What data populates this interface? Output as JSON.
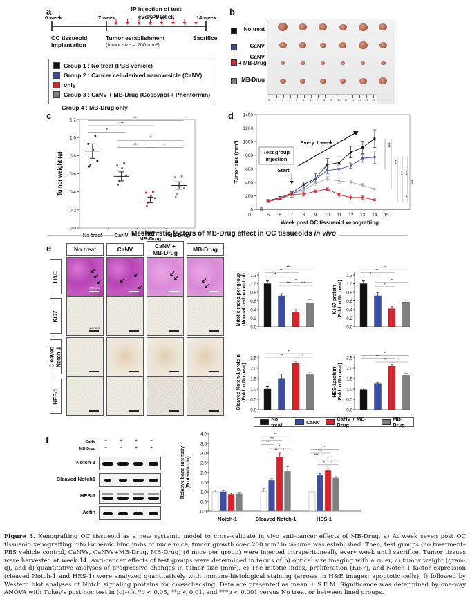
{
  "panels": {
    "a": "a",
    "b": "b",
    "c": "c",
    "d": "d",
    "e": "e",
    "f": "f"
  },
  "timeline": {
    "week0": "0 week",
    "week7": "7 week",
    "week14": "14 week",
    "ip_line1": "IP injection of test groups",
    "ip_line2": "every 1 week",
    "stage1_l1": "OC tissueoid",
    "stage1_l2": "implantation",
    "stage2_l1": "Tumor establishment",
    "stage2_l2": "(tumor size > 200 mm³)",
    "stage3": "Sacrifice",
    "injection_count": 8
  },
  "groups_legend": {
    "items": [
      {
        "label": "Group 1 : No treat (PBS vehicle)",
        "color": "#111111"
      },
      {
        "label": "Group 2 : Cancer cell-derived nanovesicle (CaNV)",
        "color": "#3b4ea6"
      },
      {
        "label": "only",
        "color": "#d9232b"
      },
      {
        "label": "Group 3 : CaNV + MB-Drug (Gossypol + Phenformin)",
        "color": "#808080"
      }
    ],
    "extra": "Group 4 : MB-Drug only"
  },
  "photo_legend": {
    "items": [
      {
        "label": "No treat",
        "color": "#111111"
      },
      {
        "label": "CaNV",
        "color": "#3b4ea6"
      },
      {
        "label_l1": "CaNV",
        "label_l2": "+ MB-Drug",
        "color": "#d9232b"
      },
      {
        "label": "MB-Drug",
        "color": "#808080"
      }
    ],
    "ruler_ticks": [
      "0",
      "1",
      "2",
      "3",
      "4",
      "5",
      "6",
      "7",
      "8",
      "9",
      "10",
      "11",
      "12",
      "13",
      "14",
      "15"
    ]
  },
  "colors": {
    "black": "#111111",
    "blue": "#3b4ea6",
    "red": "#d9232b",
    "gray": "#808080",
    "lightgray": "#aaaaaa"
  },
  "section_title": {
    "main": "Mechanistic factors of MB-Drug effect in OC tissueoids ",
    "italic": "in vivo"
  },
  "ihc": {
    "columns": [
      {
        "l1": "No treat",
        "l2": ""
      },
      {
        "l1": "CaNV",
        "l2": ""
      },
      {
        "l1": "CaNV +",
        "l2": "MB-Drug"
      },
      {
        "l1": "MB-Drug",
        "l2": ""
      }
    ],
    "rows": [
      {
        "l1": "H&E",
        "l2": ""
      },
      {
        "l1": "Ki67",
        "l2": ""
      },
      {
        "l1": "Cleaved",
        "l2": "Notch-1"
      },
      {
        "l1": "HES-1",
        "l2": ""
      }
    ],
    "scale_label_he": "100 μm",
    "scale_label_ki67": "100 μm"
  },
  "chart_data": [
    {
      "id": "c",
      "type": "scatter",
      "title": "",
      "xlabel": "",
      "ylabel": "Tumor weight (g)",
      "ylim": [
        0,
        1.2
      ],
      "yticks": [
        "0.0",
        "0.2",
        "0.4",
        "0.6",
        "0.8",
        "1.0",
        "1.2"
      ],
      "categories": [
        "No treat",
        "CaNV",
        "CaNV +|MB-Drug",
        "MB-Drug"
      ],
      "series": [
        {
          "name": "No treat",
          "color": "#111111",
          "points": [
            1.02,
            0.93,
            0.87,
            0.74,
            0.7,
            0.68
          ],
          "mean": 0.85,
          "sem": 0.08
        },
        {
          "name": "CaNV",
          "color": "#3b4ea6",
          "points": [
            0.72,
            0.69,
            0.66,
            0.58,
            0.52,
            0.48
          ],
          "mean": 0.57,
          "sem": 0.05
        },
        {
          "name": "CaNV + MB-Drug",
          "color": "#d9232b",
          "points": [
            0.4,
            0.39,
            0.35,
            0.33,
            0.28,
            0.24
          ],
          "mean": 0.31,
          "sem": 0.03
        },
        {
          "name": "MB-Drug",
          "color": "#808080",
          "points": [
            0.57,
            0.56,
            0.46,
            0.44,
            0.37,
            0.34
          ],
          "mean": 0.47,
          "sem": 0.04
        }
      ],
      "significance": [
        {
          "from": 0,
          "to": 3,
          "label": "***",
          "level": 1.19
        },
        {
          "from": 0,
          "to": 2,
          "label": "***",
          "level": 1.13
        },
        {
          "from": 0,
          "to": 1,
          "label": "*",
          "level": 1.06
        },
        {
          "from": 1,
          "to": 3,
          "label": "*",
          "level": 0.97
        },
        {
          "from": 1,
          "to": 2,
          "label": "***",
          "level": 0.89
        },
        {
          "from": 2,
          "to": 3,
          "label": "*",
          "level": 0.89
        }
      ]
    },
    {
      "id": "d",
      "type": "line",
      "xlabel": "Week post OC tissueoid xenografting",
      "ylabel": "Tumor size (mm³)",
      "ylim": [
        0,
        1400
      ],
      "yticks": [
        "0",
        "200",
        "400",
        "600",
        "800",
        "1000",
        "1200",
        "1400"
      ],
      "xticks": [
        "0",
        "5",
        "6",
        "7",
        "8",
        "9",
        "10",
        "11",
        "12",
        "13",
        "14",
        "15"
      ],
      "x": [
        5,
        6,
        7,
        8,
        9,
        10,
        11,
        12,
        13,
        14
      ],
      "series": [
        {
          "name": "No treat",
          "color": "#111111",
          "values": [
            130,
            170,
            240,
            365,
            455,
            660,
            690,
            845,
            915,
            1045
          ],
          "err": [
            15,
            20,
            30,
            35,
            70,
            90,
            85,
            85,
            90,
            130
          ]
        },
        {
          "name": "CaNV",
          "color": "#3b4ea6",
          "values": [
            125,
            165,
            230,
            310,
            445,
            575,
            595,
            645,
            755,
            770
          ],
          "err": [
            15,
            20,
            30,
            40,
            60,
            50,
            60,
            40,
            60,
            90
          ]
        },
        {
          "name": "MB-Drug",
          "color": "#aaaaaa",
          "values": [
            120,
            160,
            225,
            285,
            385,
            445,
            420,
            400,
            355,
            300
          ],
          "err": [
            15,
            20,
            30,
            30,
            30,
            40,
            40,
            25,
            25,
            30
          ]
        },
        {
          "name": "CaNV + MB-Drug",
          "color": "#d9232b",
          "values": [
            115,
            155,
            220,
            225,
            265,
            300,
            215,
            175,
            175,
            140
          ],
          "err": [
            15,
            15,
            40,
            30,
            20,
            20,
            20,
            35,
            25,
            15
          ]
        }
      ],
      "annotations": {
        "box_l1": "Test group",
        "box_l2": "injection",
        "start": "Start",
        "every": "Every 1 week"
      },
      "significance": [
        {
          "label": "***",
          "top": 1060,
          "bottom": 760
        },
        {
          "label": "***",
          "top": 1060,
          "bottom": 300
        },
        {
          "label": "***",
          "top": 1060,
          "bottom": 100
        },
        {
          "label": "***",
          "top": 780,
          "bottom": 100
        },
        {
          "label": "***",
          "top": 780,
          "bottom": 300
        },
        {
          "label": "*",
          "top": 300,
          "bottom": 100
        },
        {
          "label": "***",
          "top": 780,
          "bottom": 100
        }
      ]
    },
    {
      "id": "e1",
      "type": "bar",
      "ylabel_l1": "Mitotic index per group",
      "ylabel_l2": "(Normalized to control)",
      "ylim": [
        0,
        1.2
      ],
      "yticks": [
        "0.0",
        "0.2",
        "0.4",
        "0.6",
        "0.8",
        "1.0",
        "1.2"
      ],
      "categories": [
        "No treat",
        "CaNV",
        "CaNV + MB-Drug",
        "MB-Drug"
      ],
      "values": [
        1.0,
        0.72,
        0.34,
        0.55
      ],
      "err": [
        0.06,
        0.05,
        0.07,
        0.08
      ],
      "significance": [
        {
          "from": 0,
          "to": 3,
          "label": "***",
          "level": 1.33
        },
        {
          "from": 0,
          "to": 2,
          "label": "***",
          "level": 1.26
        },
        {
          "from": 0,
          "to": 1,
          "label": "**",
          "level": 1.17
        },
        {
          "from": 1,
          "to": 3,
          "label": "*",
          "level": 1.03
        },
        {
          "from": 1,
          "to": 2,
          "label": "***",
          "level": 0.96
        },
        {
          "from": 2,
          "to": 3,
          "label": "***",
          "level": 0.96
        }
      ]
    },
    {
      "id": "e2",
      "type": "bar",
      "ylabel_l1": "Ki 67 protein",
      "ylabel_l2": "(Fold to No treat)",
      "ylim": [
        0,
        1.2
      ],
      "yticks": [
        "0.0",
        "0.2",
        "0.4",
        "0.6",
        "0.8",
        "1.0",
        "1.2"
      ],
      "categories": [
        "No treat",
        "CaNV",
        "CaNV + MB-Drug",
        "MB-Drug"
      ],
      "values": [
        1.0,
        0.72,
        0.42,
        0.57
      ],
      "err": [
        0.06,
        0.07,
        0.05,
        0.04
      ],
      "significance": [
        {
          "from": 0,
          "to": 3,
          "label": "**",
          "level": 1.33
        },
        {
          "from": 0,
          "to": 2,
          "label": "***",
          "level": 1.26
        },
        {
          "from": 0,
          "to": 1,
          "label": "*",
          "level": 1.17
        },
        {
          "from": 1,
          "to": 3,
          "label": "*",
          "level": 1.03
        },
        {
          "from": 1,
          "to": 2,
          "label": "*",
          "level": 0.93
        }
      ]
    },
    {
      "id": "e3",
      "type": "bar",
      "ylabel_l1": "Cleaved Notch-1 protein",
      "ylabel_l2": "(Fold to No treat)",
      "ylim": [
        0,
        2.5
      ],
      "yticks": [
        "0.0",
        "0.5",
        "1.0",
        "1.5",
        "2.0",
        "2.5"
      ],
      "categories": [
        "No treat",
        "CaNV",
        "CaNV + MB-Drug",
        "MB-Drug"
      ],
      "values": [
        1.0,
        1.51,
        2.22,
        1.68
      ],
      "err": [
        0.12,
        0.2,
        0.12,
        0.12
      ],
      "significance": [
        {
          "from": 0,
          "to": 3,
          "label": "*",
          "level": 2.7
        },
        {
          "from": 0,
          "to": 2,
          "label": "**",
          "level": 2.5
        },
        {
          "from": 2,
          "to": 3,
          "label": "*",
          "level": 2.5
        }
      ]
    },
    {
      "id": "e4",
      "type": "bar",
      "ylabel_l1": "HES-1protein",
      "ylabel_l2": "(Fold to No treat)",
      "ylim": [
        0,
        2.5
      ],
      "yticks": [
        "0.0",
        "0.5",
        "1.0",
        "1.5",
        "2.0",
        "2.5"
      ],
      "categories": [
        "No treat",
        "CaNV",
        "CaNV + MB-Drug",
        "MB-Drug"
      ],
      "values": [
        0.98,
        1.24,
        2.09,
        1.65
      ],
      "err": [
        0.07,
        0.08,
        0.09,
        0.1
      ],
      "significance": [
        {
          "from": 0,
          "to": 3,
          "label": "*",
          "level": 2.62
        },
        {
          "from": 0,
          "to": 2,
          "label": "***",
          "level": 2.45
        },
        {
          "from": 1,
          "to": 2,
          "label": "**",
          "level": 2.3
        },
        {
          "from": 2,
          "to": 3,
          "label": "*",
          "level": 2.3
        }
      ]
    },
    {
      "id": "f",
      "type": "bar",
      "ylabel_l1": "Relative band intensity",
      "ylabel_l2": "(Protein/actin)",
      "ylim": [
        0,
        4.0
      ],
      "yticks": [
        "0.0",
        "0.5",
        "1.0",
        "1.5",
        "2.0",
        "2.5",
        "3.0",
        "3.5",
        "4.0"
      ],
      "categories": [
        "Notch-1",
        "Cleaved Notch-1",
        "HES-1"
      ],
      "series": [
        {
          "name": "No treat",
          "color": "#ffffff",
          "values": [
            1.0,
            1.01,
            1.0
          ],
          "err": [
            0.08,
            0.15,
            0.08
          ]
        },
        {
          "name": "CaNV",
          "color": "#3b4ea6",
          "values": [
            1.01,
            1.6,
            1.86
          ],
          "err": [
            0.06,
            0.08,
            0.09
          ]
        },
        {
          "name": "CaNV + MB-Drug",
          "color": "#d9232b",
          "values": [
            0.88,
            2.8,
            2.1
          ],
          "err": [
            0.06,
            0.2,
            0.12
          ]
        },
        {
          "name": "MB-Drug",
          "color": "#808080",
          "values": [
            0.9,
            2.06,
            1.72
          ],
          "err": [
            0.08,
            0.25,
            0.07
          ]
        }
      ],
      "significance": [
        {
          "group": 1,
          "from": 0,
          "to": 3,
          "label": "**",
          "level": 3.85
        },
        {
          "group": 1,
          "from": 0,
          "to": 2,
          "label": "***",
          "level": 3.65
        },
        {
          "group": 1,
          "from": 0,
          "to": 1,
          "label": "**",
          "level": 3.45
        },
        {
          "group": 1,
          "from": 1,
          "to": 3,
          "label": "*",
          "level": 3.25
        },
        {
          "group": 1,
          "from": 1,
          "to": 2,
          "label": "***",
          "level": 3.05
        },
        {
          "group": 1,
          "from": 2,
          "to": 3,
          "label": "*",
          "level": 3.05
        },
        {
          "group": 2,
          "from": 0,
          "to": 3,
          "label": "**",
          "level": 3.2
        },
        {
          "group": 2,
          "from": 0,
          "to": 2,
          "label": "***",
          "level": 3.0
        },
        {
          "group": 2,
          "from": 0,
          "to": 1,
          "label": "***",
          "level": 2.8
        },
        {
          "group": 2,
          "from": 1,
          "to": 3,
          "label": "*",
          "level": 2.6
        },
        {
          "group": 2,
          "from": 1,
          "to": 2,
          "label": "*",
          "level": 2.4
        },
        {
          "group": 2,
          "from": 2,
          "to": 3,
          "label": "*",
          "level": 2.4
        }
      ]
    }
  ],
  "bar_legend": [
    {
      "label": "No treat",
      "color": "#111111"
    },
    {
      "label": "CaNV",
      "color": "#3b4ea6"
    },
    {
      "label": "CaNV + MB-Drug",
      "color": "#d9232b"
    },
    {
      "label": "MB-Drug",
      "color": "#808080"
    }
  ],
  "western": {
    "treatments": [
      {
        "label": "CaNV",
        "marks": [
          "−",
          "+",
          "+",
          "−"
        ]
      },
      {
        "label": "MB-Drug",
        "marks": [
          "−",
          "−",
          "+",
          "+"
        ]
      }
    ],
    "blots": [
      {
        "label": "Notch-1",
        "widths": [
          1,
          1,
          0.9,
          0.9
        ],
        "double": false
      },
      {
        "label": "Cleaved Notch1",
        "widths": [
          0.6,
          0.8,
          1,
          0.85
        ],
        "double": false
      },
      {
        "label": "HES-1",
        "widths": [
          1,
          1,
          1,
          1
        ],
        "double": true
      },
      {
        "label": "Actin",
        "widths": [
          0.9,
          0.85,
          0.85,
          0.85
        ],
        "double": false
      }
    ]
  },
  "caption": {
    "label": "Figure 3.",
    "text": " Xenografting OC tissueoid as a new systemic model to cross-validate in vivo anti-cancer effects of MB-Drug. a) At week seven post OC tissueoid xenografting into ischemic hindlimbs of nude mice, tumor growth over 200 mm³ in volume was established. Then, test groups (no treatment–PBS vehicle control, CaNVs, CaNVs+MB-Drug, MB-Drug) (6 mice per group) were injected intraperitoneally every week until sacrifice. Tumor tissues were harvested at week 14. Anti-cancer effects of test groups were determined in terms of b) optical size imaging with a ruler, c) tumor weight (gram: g), and d) quantitative analyses of progressive changes in tumor size (mm³). e) The mitotic index, proliferation (Ki67), and Notch-1 factor expression (cleaved Notch-1 and HES-1) were analyzed quantitatively with immune-histological staining (arrows in H&E images: apoptotic cells), f) followed by Western blot analyses of Notch signaling proteins for crosschecking. Data are presented as mean ± S.E.M. Significance was determined by one-way ANOVA with Tukey's post-hoc test in (c)–(f). *p < 0.05, **p < 0.01, and ***p < 0.001 versus No treat or between lined groups."
  }
}
